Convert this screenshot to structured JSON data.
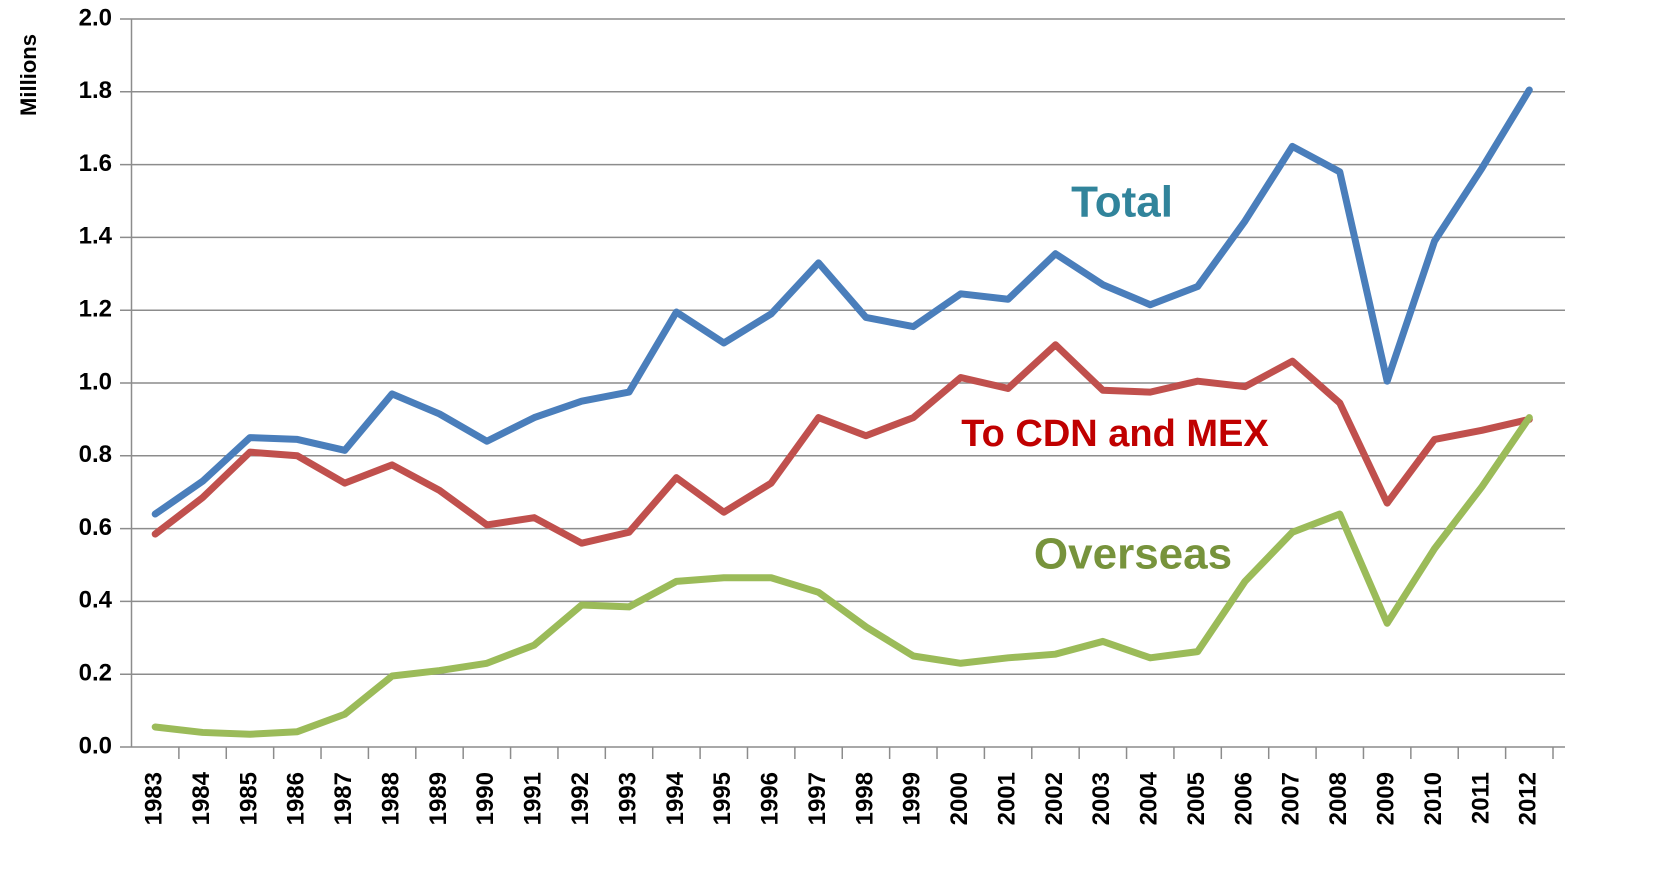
{
  "chart_data": {
    "type": "line",
    "y_axis_label": "Millions",
    "categories": [
      "1983",
      "1984",
      "1985",
      "1986",
      "1987",
      "1988",
      "1989",
      "1990",
      "1991",
      "1992",
      "1993",
      "1994",
      "1995",
      "1996",
      "1997",
      "1998",
      "1999",
      "2000",
      "2001",
      "2002",
      "2003",
      "2004",
      "2005",
      "2006",
      "2007",
      "2008",
      "2009",
      "2010",
      "2011",
      "2012"
    ],
    "series": [
      {
        "name": "Total",
        "color": "#4a7ebb",
        "label_color": "#31849b",
        "values": [
          0.64,
          0.73,
          0.85,
          0.845,
          0.815,
          0.97,
          0.915,
          0.84,
          0.905,
          0.95,
          0.975,
          1.195,
          1.11,
          1.19,
          1.33,
          1.18,
          1.155,
          1.245,
          1.23,
          1.355,
          1.27,
          1.215,
          1.265,
          1.445,
          1.65,
          1.58,
          1.005,
          1.39,
          1.59,
          1.805
        ]
      },
      {
        "name": "To CDN and MEX",
        "color": "#c0504d",
        "label_color": "#c00000",
        "values": [
          0.585,
          0.685,
          0.81,
          0.8,
          0.725,
          0.775,
          0.705,
          0.61,
          0.63,
          0.56,
          0.59,
          0.74,
          0.645,
          0.725,
          0.905,
          0.855,
          0.905,
          1.015,
          0.985,
          1.105,
          0.98,
          0.975,
          1.005,
          0.99,
          1.06,
          0.945,
          0.67,
          0.845,
          0.87,
          0.9
        ]
      },
      {
        "name": "Overseas",
        "color": "#9bbb59",
        "label_color": "#77933c",
        "values": [
          0.055,
          0.04,
          0.035,
          0.042,
          0.09,
          0.195,
          0.21,
          0.23,
          0.28,
          0.39,
          0.385,
          0.455,
          0.465,
          0.465,
          0.425,
          0.33,
          0.25,
          0.23,
          0.245,
          0.255,
          0.29,
          0.245,
          0.262,
          0.455,
          0.59,
          0.64,
          0.34,
          0.545,
          0.715,
          0.905
        ]
      }
    ],
    "ylim": [
      0,
      2
    ],
    "yticks": [
      {
        "value": 0,
        "label": "0.0"
      },
      0.2,
      0.4,
      0.6,
      0.8,
      {
        "value": 1,
        "label": "1.0"
      },
      1.2,
      1.4,
      1.6,
      1.8,
      {
        "value": 2,
        "label": "2.0"
      }
    ],
    "grid": true
  }
}
